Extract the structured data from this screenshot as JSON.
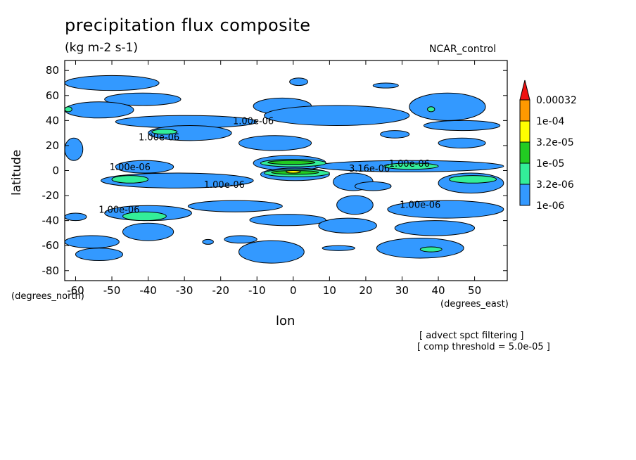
{
  "chart_data": {
    "type": "contour",
    "title": "precipitation flux composite",
    "units": "(kg m-2 s-1)",
    "model_label": "NCAR_control",
    "xlabel": "lon",
    "ylabel": "latitude",
    "x_unit_label": "(degrees_east)",
    "y_unit_label": "(degrees_north)",
    "xlim": [
      -63,
      59
    ],
    "ylim": [
      -88,
      88
    ],
    "x_ticks": [
      -60,
      -50,
      -40,
      -30,
      -20,
      -10,
      0,
      10,
      20,
      30,
      40,
      50
    ],
    "y_ticks": [
      80,
      60,
      40,
      20,
      0,
      -20,
      -40,
      -60,
      -80
    ],
    "levels": [
      "1e-06",
      "3.2e-06",
      "1e-05",
      "3.2e-05",
      "1e-04",
      "0.00032"
    ],
    "level_colors": [
      "#3399ff",
      "#33ee99",
      "#22cc22",
      "#ffff00",
      "#ff9900",
      "#ee1111"
    ],
    "contour_labels": [
      {
        "text": "1.00e-06",
        "lon": -11,
        "lat": 40
      },
      {
        "text": "1.00e-06",
        "lon": -37,
        "lat": 27
      },
      {
        "text": "1.00e-06",
        "lon": -45,
        "lat": 3
      },
      {
        "text": "1.00e-06",
        "lon": -19,
        "lat": -11
      },
      {
        "text": "1.00e-06",
        "lon": 32,
        "lat": 6
      },
      {
        "text": "3.16e-06",
        "lon": 21,
        "lat": 2
      },
      {
        "text": "1.00e-06",
        "lon": 35,
        "lat": -27
      },
      {
        "text": "1.00e-06",
        "lon": -48,
        "lat": -31
      }
    ],
    "regions": [
      {
        "level": 0,
        "lon": [
          -63,
          -37
        ],
        "lat": [
          64,
          76
        ]
      },
      {
        "level": 0,
        "lon": [
          -52,
          -31
        ],
        "lat": [
          52,
          62
        ]
      },
      {
        "level": 0,
        "lon": [
          -63,
          -44
        ],
        "lat": [
          42,
          55
        ]
      },
      {
        "level": 0,
        "lon": [
          -49,
          -10
        ],
        "lat": [
          34,
          44
        ]
      },
      {
        "level": 0,
        "lon": [
          -11,
          5
        ],
        "lat": [
          45,
          58
        ]
      },
      {
        "level": 0,
        "lon": [
          -8,
          32
        ],
        "lat": [
          36,
          52
        ]
      },
      {
        "level": 0,
        "lon": [
          -1,
          4
        ],
        "lat": [
          68,
          74
        ]
      },
      {
        "level": 0,
        "lon": [
          22,
          29
        ],
        "lat": [
          66,
          70
        ]
      },
      {
        "level": 0,
        "lon": [
          32,
          53
        ],
        "lat": [
          40,
          62
        ]
      },
      {
        "level": 0,
        "lon": [
          36,
          57
        ],
        "lat": [
          32,
          40
        ]
      },
      {
        "level": 0,
        "lon": [
          -40,
          -17
        ],
        "lat": [
          24,
          36
        ]
      },
      {
        "level": 0,
        "lon": [
          -15,
          5
        ],
        "lat": [
          16,
          28
        ]
      },
      {
        "level": 0,
        "lon": [
          -63,
          -58
        ],
        "lat": [
          8,
          26
        ]
      },
      {
        "level": 0,
        "lon": [
          24,
          32
        ],
        "lat": [
          26,
          32
        ]
      },
      {
        "level": 0,
        "lon": [
          40,
          53
        ],
        "lat": [
          18,
          26
        ]
      },
      {
        "level": 0,
        "lon": [
          -49,
          -33
        ],
        "lat": [
          -2,
          8
        ]
      },
      {
        "level": 0,
        "lon": [
          -53,
          -11
        ],
        "lat": [
          -14,
          -2
        ]
      },
      {
        "level": 0,
        "lon": [
          -11,
          9
        ],
        "lat": [
          0,
          12
        ]
      },
      {
        "level": 0,
        "lon": [
          6,
          58
        ],
        "lat": [
          -1,
          8
        ]
      },
      {
        "level": 0,
        "lon": [
          -9,
          10
        ],
        "lat": [
          -8,
          2
        ]
      },
      {
        "level": 0,
        "lon": [
          11,
          22
        ],
        "lat": [
          -16,
          -2
        ]
      },
      {
        "level": 0,
        "lon": [
          17,
          27
        ],
        "lat": [
          -16,
          -9
        ]
      },
      {
        "level": 0,
        "lon": [
          40,
          58
        ],
        "lat": [
          -18,
          -2
        ]
      },
      {
        "level": 0,
        "lon": [
          -52,
          -28
        ],
        "lat": [
          -40,
          -28
        ]
      },
      {
        "level": 0,
        "lon": [
          -29,
          -3
        ],
        "lat": [
          -33,
          -24
        ]
      },
      {
        "level": 0,
        "lon": [
          12,
          22
        ],
        "lat": [
          -35,
          -20
        ]
      },
      {
        "level": 0,
        "lon": [
          26,
          58
        ],
        "lat": [
          -38,
          -24
        ]
      },
      {
        "level": 0,
        "lon": [
          -63,
          -57
        ],
        "lat": [
          -40,
          -34
        ]
      },
      {
        "level": 0,
        "lon": [
          -47,
          -33
        ],
        "lat": [
          -56,
          -42
        ]
      },
      {
        "level": 0,
        "lon": [
          -12,
          9
        ],
        "lat": [
          -44,
          -35
        ]
      },
      {
        "level": 0,
        "lon": [
          7,
          23
        ],
        "lat": [
          -50,
          -38
        ]
      },
      {
        "level": 0,
        "lon": [
          28,
          50
        ],
        "lat": [
          -52,
          -40
        ]
      },
      {
        "level": 0,
        "lon": [
          -63,
          -48
        ],
        "lat": [
          -62,
          -52
        ]
      },
      {
        "level": 0,
        "lon": [
          -60,
          -47
        ],
        "lat": [
          -72,
          -62
        ]
      },
      {
        "level": 0,
        "lon": [
          -19,
          -10
        ],
        "lat": [
          -58,
          -52
        ]
      },
      {
        "level": 0,
        "lon": [
          -15,
          3
        ],
        "lat": [
          -74,
          -56
        ]
      },
      {
        "level": 0,
        "lon": [
          8,
          17
        ],
        "lat": [
          -64,
          -60
        ]
      },
      {
        "level": 0,
        "lon": [
          23,
          47
        ],
        "lat": [
          -70,
          -54
        ]
      },
      {
        "level": 0,
        "lon": [
          -25,
          -22
        ],
        "lat": [
          -59,
          -55
        ]
      },
      {
        "level": 1,
        "lon": [
          -39,
          -32
        ],
        "lat": [
          29,
          33
        ]
      },
      {
        "level": 1,
        "lon": [
          -47,
          -35
        ],
        "lat": [
          -40,
          -33
        ]
      },
      {
        "level": 1,
        "lon": [
          -9,
          9
        ],
        "lat": [
          3,
          9
        ]
      },
      {
        "level": 1,
        "lon": [
          -8,
          10
        ],
        "lat": [
          -5,
          1
        ]
      },
      {
        "level": 1,
        "lon": [
          25,
          40
        ],
        "lat": [
          1,
          6
        ]
      },
      {
        "level": 1,
        "lon": [
          -50,
          -40
        ],
        "lat": [
          -10,
          -4
        ]
      },
      {
        "level": 1,
        "lon": [
          43,
          56
        ],
        "lat": [
          -10,
          -4
        ]
      },
      {
        "level": 1,
        "lon": [
          35,
          41
        ],
        "lat": [
          -65,
          -61
        ]
      },
      {
        "level": 1,
        "lon": [
          37,
          39
        ],
        "lat": [
          47,
          51
        ]
      },
      {
        "level": 1,
        "lon": [
          -63,
          -61
        ],
        "lat": [
          47,
          51
        ]
      },
      {
        "level": 2,
        "lon": [
          -6,
          7
        ],
        "lat": [
          -3,
          0
        ]
      },
      {
        "level": 2,
        "lon": [
          -7,
          6
        ],
        "lat": [
          5,
          8
        ]
      },
      {
        "level": 3,
        "lon": [
          -2,
          2
        ],
        "lat": [
          -2,
          0
        ]
      }
    ]
  },
  "colorbar_labels": [
    "0.00032",
    "1e-04",
    "3.2e-05",
    "1e-05",
    "3.2e-06",
    "1e-06"
  ],
  "notes": [
    "[ advect spct filtering ]",
    "[ comp threshold = 5.0e-05 ]"
  ]
}
